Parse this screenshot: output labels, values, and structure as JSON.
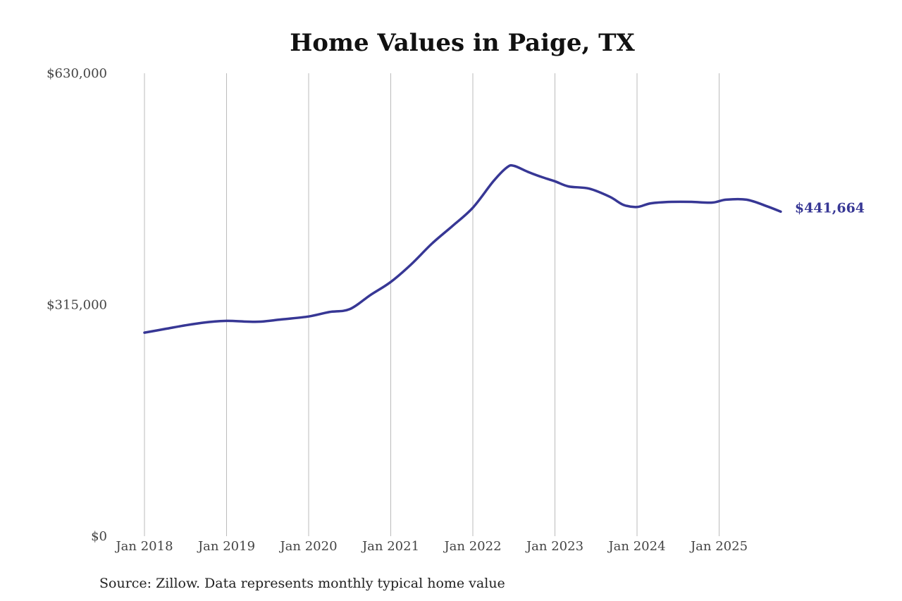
{
  "chart_data": {
    "type": "line",
    "title": "Home Values in Paige, TX",
    "source": "Source: Zillow. Data represents monthly typical home value",
    "ylim": [
      0,
      630000
    ],
    "y_ticks": [
      {
        "value": 0,
        "label": "$0"
      },
      {
        "value": 315000,
        "label": "$315,000"
      },
      {
        "value": 630000,
        "label": "$630,000"
      }
    ],
    "x_ticks": [
      {
        "value": "2018-01",
        "label": "Jan 2018"
      },
      {
        "value": "2019-01",
        "label": "Jan 2019"
      },
      {
        "value": "2020-01",
        "label": "Jan 2020"
      },
      {
        "value": "2021-01",
        "label": "Jan 2021"
      },
      {
        "value": "2022-01",
        "label": "Jan 2022"
      },
      {
        "value": "2023-01",
        "label": "Jan 2023"
      },
      {
        "value": "2024-01",
        "label": "Jan 2024"
      },
      {
        "value": "2025-01",
        "label": "Jan 2025"
      }
    ],
    "grid": {
      "vertical": true,
      "horizontal": false
    },
    "line_color": "#373795",
    "end_label": "$441,664",
    "series": [
      {
        "points": [
          {
            "x": "2018-01",
            "y": 277000
          },
          {
            "x": "2018-04",
            "y": 282000
          },
          {
            "x": "2018-07",
            "y": 287000
          },
          {
            "x": "2018-10",
            "y": 291000
          },
          {
            "x": "2019-01",
            "y": 293000
          },
          {
            "x": "2019-04",
            "y": 292000
          },
          {
            "x": "2019-06",
            "y": 292000
          },
          {
            "x": "2019-09",
            "y": 295000
          },
          {
            "x": "2020-01",
            "y": 299000
          },
          {
            "x": "2020-04",
            "y": 305000
          },
          {
            "x": "2020-07",
            "y": 309000
          },
          {
            "x": "2020-10",
            "y": 328000
          },
          {
            "x": "2021-01",
            "y": 346000
          },
          {
            "x": "2021-04",
            "y": 370000
          },
          {
            "x": "2021-07",
            "y": 398000
          },
          {
            "x": "2021-10",
            "y": 422000
          },
          {
            "x": "2022-01",
            "y": 447000
          },
          {
            "x": "2022-04",
            "y": 483000
          },
          {
            "x": "2022-06",
            "y": 502000
          },
          {
            "x": "2022-07",
            "y": 504000
          },
          {
            "x": "2022-09",
            "y": 496000
          },
          {
            "x": "2022-11",
            "y": 489000
          },
          {
            "x": "2023-01",
            "y": 483000
          },
          {
            "x": "2023-03",
            "y": 476000
          },
          {
            "x": "2023-06",
            "y": 473000
          },
          {
            "x": "2023-09",
            "y": 462000
          },
          {
            "x": "2023-11",
            "y": 451000
          },
          {
            "x": "2024-01",
            "y": 448000
          },
          {
            "x": "2024-03",
            "y": 453000
          },
          {
            "x": "2024-06",
            "y": 455000
          },
          {
            "x": "2024-09",
            "y": 455000
          },
          {
            "x": "2024-12",
            "y": 454000
          },
          {
            "x": "2025-02",
            "y": 458000
          },
          {
            "x": "2025-05",
            "y": 458000
          },
          {
            "x": "2025-08",
            "y": 449000
          },
          {
            "x": "2025-10",
            "y": 441664
          }
        ]
      }
    ]
  }
}
